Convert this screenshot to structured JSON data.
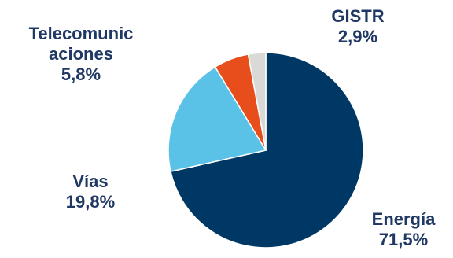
{
  "chart_data": {
    "type": "pie",
    "title": "",
    "slices": [
      {
        "name": "Energía",
        "value": 71.5,
        "label": "71,5%",
        "color": "#003865"
      },
      {
        "name": "Vías",
        "value": 19.8,
        "label": "19,8%",
        "color": "#5bc2e7"
      },
      {
        "name": "Telecomunicaciones",
        "value": 5.8,
        "label": "5,8%",
        "color": "#e84e1b"
      },
      {
        "name": "GISTR",
        "value": 2.9,
        "label": "2,9%",
        "color": "#d9d9d6"
      }
    ],
    "labels": {
      "telecom_line1": "Telecomunic",
      "telecom_line2": "aciones",
      "telecom_value": "5,8%",
      "gistr_name": "GISTR",
      "gistr_value": "2,9%",
      "vias_name": "Vías",
      "vias_value": "19,8%",
      "energia_name": "Energía",
      "energia_value": "71,5%"
    },
    "label_color": "#1f3864"
  }
}
